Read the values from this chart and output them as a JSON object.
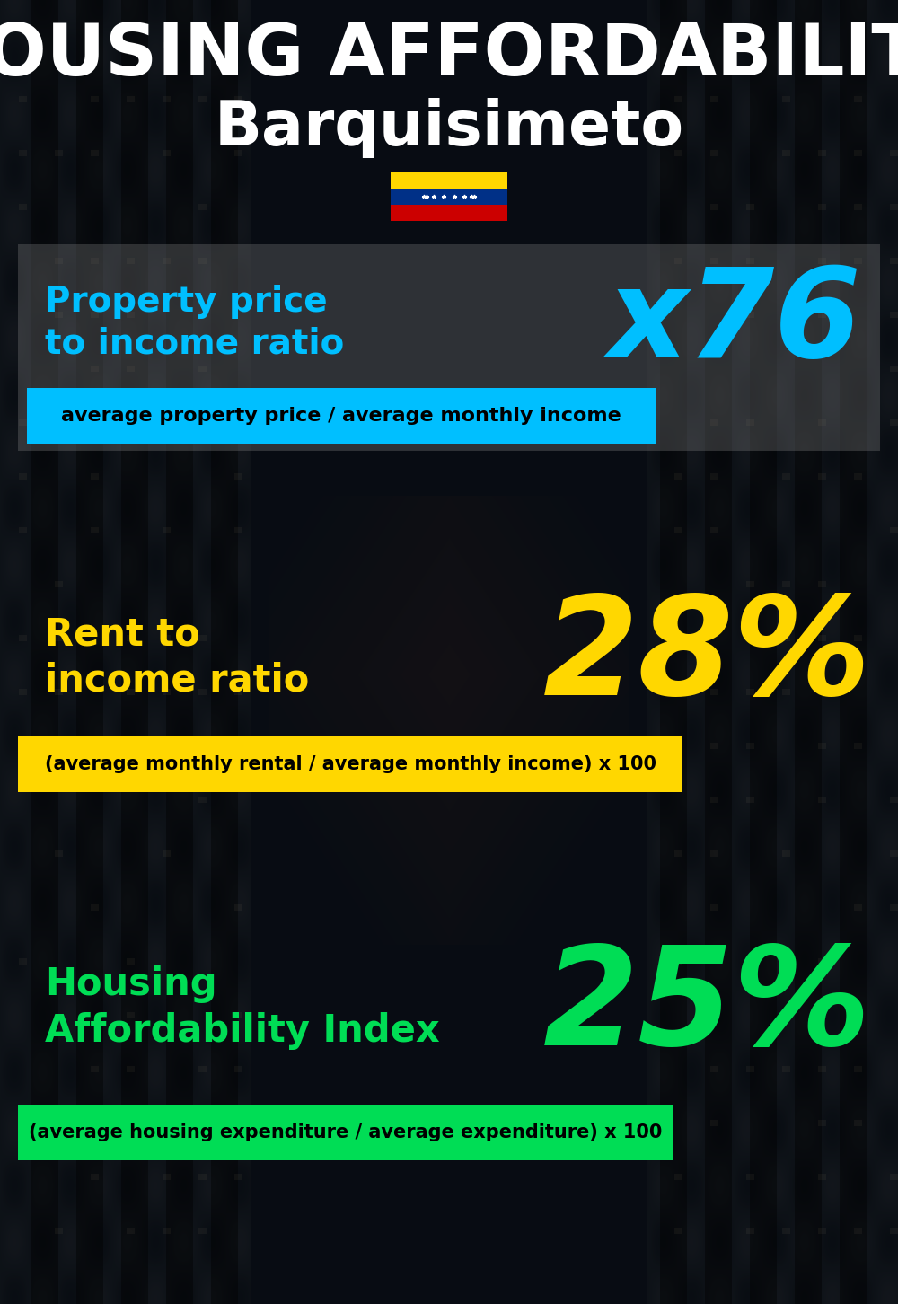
{
  "title_line1": "HOUSING AFFORDABILITY",
  "title_line2": "Barquisimeto",
  "bg_color": "#0d1520",
  "title1_color": "#ffffff",
  "title2_color": "#ffffff",
  "section1_label": "Property price\nto income ratio",
  "section1_value": "x76",
  "section1_label_color": "#00bfff",
  "section1_value_color": "#00bfff",
  "section1_formula": "average property price / average monthly income",
  "section1_formula_bg": "#00bfff",
  "section1_formula_color": "#000000",
  "section2_label": "Rent to\nincome ratio",
  "section2_value": "28%",
  "section2_label_color": "#ffd700",
  "section2_value_color": "#ffd700",
  "section2_formula": "(average monthly rental / average monthly income) x 100",
  "section2_formula_bg": "#ffd700",
  "section2_formula_color": "#000000",
  "section3_label": "Housing\nAffordability Index",
  "section3_value": "25%",
  "section3_label_color": "#00dd55",
  "section3_value_color": "#00dd55",
  "section3_formula": "(average housing expenditure / average expenditure) x 100",
  "section3_formula_bg": "#00dd55",
  "section3_formula_color": "#000000",
  "flag_yellow": "#ffd700",
  "flag_blue": "#003087",
  "flag_red": "#cc0000",
  "fig_width": 10.0,
  "fig_height": 14.52
}
